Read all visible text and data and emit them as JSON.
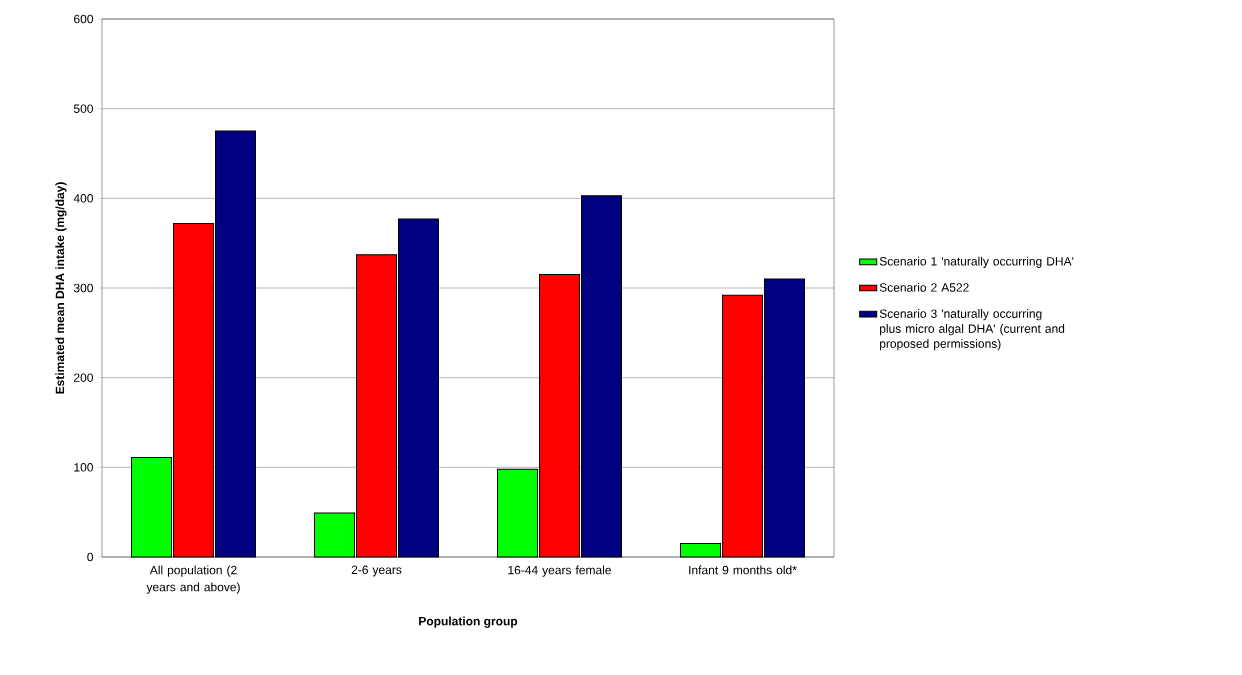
{
  "chart_data": {
    "type": "bar",
    "xlabel": "Population group",
    "ylabel": "Estimated mean DHA intake (mg/day)",
    "categories": [
      "All population (2 years and above)",
      "2-6 years",
      "16-44 years female",
      "Infant 9 months old*"
    ],
    "series": [
      {
        "name": "Scenario 1 'naturally occurring DHA'",
        "color": "#00ff00",
        "values": [
          111,
          49,
          98,
          15
        ]
      },
      {
        "name": "Scenario 2 A522",
        "color": "#ff0000",
        "values": [
          372,
          337,
          315,
          292
        ]
      },
      {
        "name": "Scenario 3 'naturally occurring plus micro algal DHA'  (current and proposed permissions)",
        "color": "#000080",
        "values": [
          475,
          377,
          403,
          310
        ]
      }
    ],
    "ylim": [
      0,
      600
    ],
    "yticks": [
      0,
      100,
      200,
      300,
      400,
      500,
      600
    ],
    "grid": "y",
    "legend": "right"
  }
}
